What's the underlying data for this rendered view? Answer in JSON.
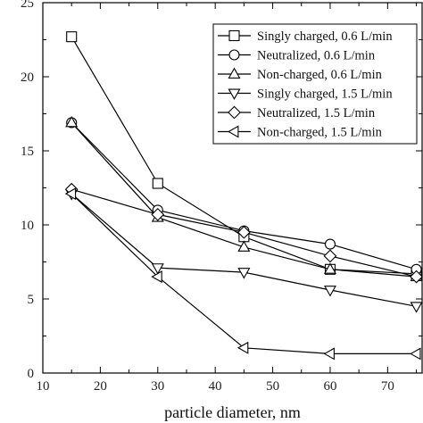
{
  "chart_data": {
    "type": "line",
    "title": "",
    "xlabel": "particle diameter, nm",
    "ylabel": "",
    "xlim": [
      10,
      76
    ],
    "ylim": [
      0,
      25
    ],
    "xticks": [
      10,
      20,
      30,
      40,
      50,
      60,
      70
    ],
    "yticks": [
      0,
      5,
      10,
      15,
      20,
      25
    ],
    "grid": false,
    "legend_position": "top-right",
    "series": [
      {
        "name": "Singly charged, 0.6 L/min",
        "marker": "square",
        "x": [
          15,
          30,
          45,
          60,
          75
        ],
        "y": [
          22.7,
          12.8,
          9.2,
          7.0,
          6.7
        ]
      },
      {
        "name": "Neutralized, 0.6 L/min",
        "marker": "circle",
        "x": [
          15,
          30,
          45,
          60,
          75
        ],
        "y": [
          16.9,
          11.0,
          9.6,
          8.7,
          7.0
        ]
      },
      {
        "name": "Non-charged, 0.6 L/min",
        "marker": "triangle-up",
        "x": [
          15,
          30,
          45,
          60,
          75
        ],
        "y": [
          16.9,
          10.5,
          8.5,
          7.0,
          6.5
        ]
      },
      {
        "name": "Singly charged, 1.5 L/min",
        "marker": "triangle-down",
        "x": [
          15,
          30,
          45,
          60,
          75
        ],
        "y": [
          12.1,
          7.1,
          6.8,
          5.6,
          4.5
        ]
      },
      {
        "name": "Neutralized, 1.5 L/min",
        "marker": "diamond",
        "x": [
          15,
          30,
          45,
          60,
          75
        ],
        "y": [
          12.4,
          10.7,
          9.5,
          7.9,
          6.5
        ]
      },
      {
        "name": "Non-charged, 1.5 L/min",
        "marker": "triangle-left",
        "x": [
          15,
          30,
          45,
          60,
          75
        ],
        "y": [
          12.1,
          6.5,
          1.7,
          1.3,
          1.3
        ]
      }
    ]
  }
}
